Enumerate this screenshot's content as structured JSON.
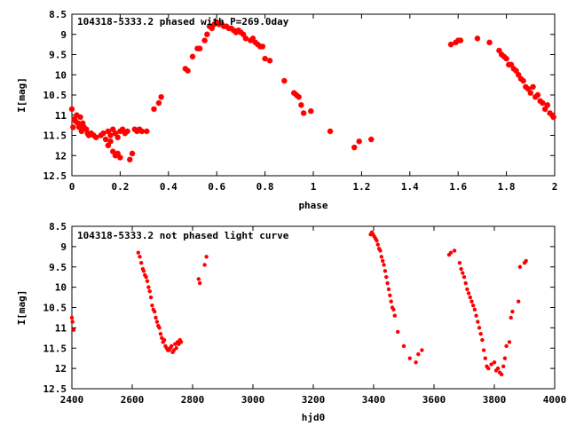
{
  "chart_data": [
    {
      "type": "scatter",
      "title": "104318-5333.2 phased with P=269.0day",
      "xlabel": "phase",
      "ylabel": "I[mag]",
      "xlim": [
        0,
        2
      ],
      "ylim": [
        12.5,
        8.5
      ],
      "y_inverted": true,
      "grid": false,
      "xticks": [
        "0",
        "0.2",
        "0.4",
        "0.6",
        "0.8",
        "1",
        "1.2",
        "1.4",
        "1.6",
        "1.8",
        "2"
      ],
      "yticks": [
        "8.5",
        "9",
        "9.5",
        "10",
        "10.5",
        "11",
        "11.5",
        "12",
        "12.5"
      ],
      "marker_color": "#ff0000",
      "marker": "star",
      "series": [
        {
          "x": [
            0.0,
            0.005,
            0.01,
            0.015,
            0.02,
            0.025,
            0.03,
            0.035,
            0.04,
            0.045,
            0.05,
            0.06,
            0.065,
            0.07,
            0.08,
            0.09,
            0.1,
            0.12,
            0.13,
            0.14,
            0.15,
            0.15,
            0.16,
            0.16,
            0.17,
            0.17,
            0.18,
            0.18,
            0.19,
            0.19,
            0.2,
            0.2,
            0.21,
            0.22,
            0.23,
            0.24,
            0.25,
            0.26,
            0.27,
            0.28,
            0.29,
            0.31,
            0.34,
            0.36,
            0.37,
            0.47,
            0.48,
            0.5,
            0.52,
            0.53,
            0.55,
            0.56,
            0.57,
            0.58,
            0.59,
            0.6,
            0.61,
            0.62,
            0.63,
            0.64,
            0.65,
            0.66,
            0.67,
            0.68,
            0.69,
            0.7,
            0.71,
            0.72,
            0.74,
            0.75,
            0.76,
            0.77,
            0.78,
            0.79,
            0.8,
            0.82,
            0.88,
            0.92,
            0.93,
            0.94,
            0.95,
            0.96,
            0.99,
            1.07,
            1.17,
            1.19,
            1.24,
            1.57,
            1.59,
            1.6,
            1.61,
            1.68,
            1.73,
            1.77,
            1.78,
            1.79,
            1.8,
            1.81,
            1.82,
            1.83,
            1.84,
            1.85,
            1.86,
            1.87,
            1.88,
            1.89,
            1.9,
            1.91,
            1.92,
            1.93,
            1.94,
            1.95,
            1.96,
            1.97,
            1.98,
            1.99,
            1.995
          ],
          "y": [
            10.85,
            11.3,
            11.1,
            11.15,
            11.0,
            11.2,
            11.3,
            11.05,
            11.4,
            11.2,
            11.3,
            11.35,
            11.45,
            11.5,
            11.45,
            11.5,
            11.55,
            11.5,
            11.45,
            11.6,
            11.75,
            11.4,
            11.65,
            11.5,
            11.9,
            11.35,
            12.0,
            11.45,
            11.95,
            11.55,
            12.05,
            11.4,
            11.35,
            11.45,
            11.4,
            12.1,
            11.95,
            11.35,
            11.4,
            11.35,
            11.4,
            11.4,
            10.85,
            10.7,
            10.55,
            9.85,
            9.9,
            9.55,
            9.35,
            9.35,
            9.15,
            9.0,
            8.8,
            8.85,
            8.75,
            8.7,
            8.75,
            8.75,
            8.8,
            8.8,
            8.85,
            8.85,
            8.9,
            8.95,
            8.9,
            8.95,
            9.0,
            9.1,
            9.15,
            9.1,
            9.2,
            9.25,
            9.3,
            9.3,
            9.6,
            9.65,
            10.15,
            10.45,
            10.5,
            10.55,
            10.75,
            10.95,
            10.9,
            11.4,
            11.8,
            11.65,
            11.6,
            9.25,
            9.2,
            9.15,
            9.15,
            9.1,
            9.2,
            9.4,
            9.5,
            9.55,
            9.6,
            9.75,
            9.75,
            9.85,
            9.9,
            10.0,
            10.1,
            10.15,
            10.3,
            10.35,
            10.45,
            10.3,
            10.55,
            10.5,
            10.65,
            10.7,
            10.85,
            10.75,
            10.95,
            11.0,
            11.05
          ]
        }
      ]
    },
    {
      "type": "scatter",
      "title": "104318-5333.2 not phased light curve",
      "xlabel": "hjd0",
      "ylabel": "I[mag]",
      "xlim": [
        2400,
        4000
      ],
      "ylim": [
        12.5,
        8.5
      ],
      "y_inverted": true,
      "grid": false,
      "xticks": [
        "2400",
        "2600",
        "2800",
        "3000",
        "3200",
        "3400",
        "3600",
        "3800",
        "4000"
      ],
      "yticks": [
        "8.5",
        "9",
        "9.5",
        "10",
        "10.5",
        "11",
        "11.5",
        "12",
        "12.5"
      ],
      "marker_color": "#ff0000",
      "marker": "dot",
      "series": [
        {
          "x": [
            2400,
            2402,
            2406,
            2620,
            2625,
            2630,
            2635,
            2638,
            2642,
            2646,
            2650,
            2654,
            2658,
            2662,
            2666,
            2670,
            2674,
            2678,
            2682,
            2686,
            2690,
            2694,
            2698,
            2702,
            2706,
            2710,
            2714,
            2718,
            2722,
            2726,
            2730,
            2734,
            2738,
            2742,
            2746,
            2750,
            2754,
            2758,
            2762,
            2820,
            2824,
            2840,
            2846,
            3390,
            3394,
            3398,
            3402,
            3406,
            3410,
            3414,
            3418,
            3422,
            3426,
            3430,
            3434,
            3438,
            3442,
            3446,
            3450,
            3454,
            3458,
            3462,
            3466,
            3470,
            3480,
            3500,
            3520,
            3540,
            3548,
            3560,
            3650,
            3656,
            3668,
            3685,
            3690,
            3695,
            3700,
            3705,
            3710,
            3715,
            3720,
            3725,
            3730,
            3735,
            3740,
            3745,
            3750,
            3755,
            3760,
            3765,
            3770,
            3775,
            3780,
            3790,
            3800,
            3806,
            3812,
            3818,
            3824,
            3830,
            3835,
            3840,
            3850,
            3855,
            3860,
            3880,
            3885,
            3900,
            3905
          ],
          "y": [
            10.75,
            10.85,
            11.05,
            9.15,
            9.25,
            9.4,
            9.55,
            9.6,
            9.7,
            9.75,
            9.85,
            10.0,
            10.1,
            10.25,
            10.45,
            10.55,
            10.6,
            10.75,
            10.85,
            10.95,
            11.0,
            11.15,
            11.25,
            11.35,
            11.3,
            11.45,
            11.5,
            11.55,
            11.55,
            11.5,
            11.45,
            11.6,
            11.55,
            11.4,
            11.5,
            11.35,
            11.4,
            11.3,
            11.35,
            9.8,
            9.9,
            9.45,
            9.25,
            8.7,
            8.65,
            8.7,
            8.75,
            8.8,
            8.85,
            8.95,
            9.05,
            9.1,
            9.25,
            9.35,
            9.45,
            9.6,
            9.75,
            9.9,
            10.05,
            10.2,
            10.35,
            10.5,
            10.55,
            10.7,
            11.1,
            11.45,
            11.75,
            11.85,
            11.65,
            11.55,
            9.2,
            9.15,
            9.1,
            9.4,
            9.55,
            9.65,
            9.75,
            9.9,
            10.05,
            10.15,
            10.25,
            10.35,
            10.45,
            10.55,
            10.7,
            10.85,
            11.0,
            11.15,
            11.3,
            11.55,
            11.75,
            11.95,
            12.0,
            11.9,
            11.85,
            12.05,
            12.0,
            12.1,
            12.15,
            11.95,
            11.75,
            11.45,
            11.35,
            10.75,
            10.6,
            10.35,
            9.5,
            9.4,
            9.35
          ]
        }
      ]
    }
  ]
}
